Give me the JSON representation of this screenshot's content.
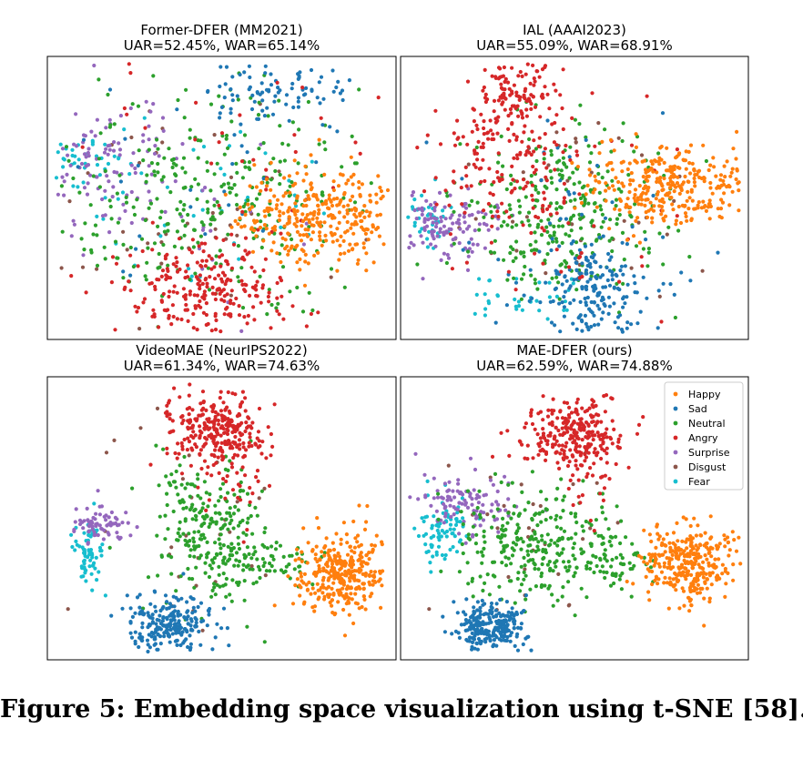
{
  "caption": "Figure 5: Embedding space visualization using t-SNE [58].",
  "colors": {
    "Happy": "#ff7f0e",
    "Sad": "#1f77b4",
    "Neutral": "#2ca02c",
    "Angry": "#d62728",
    "Surprise": "#9467bd",
    "Disgust": "#8c564b",
    "Fear": "#17becf"
  },
  "chart_data": [
    {
      "type": "scatter",
      "title": "Former-DFER (MM2021)",
      "subtitle": "UAR=52.45%, WAR=65.14%",
      "xaxis": "none",
      "yaxis": "none",
      "grid": false,
      "xlim": [
        0,
        100
      ],
      "ylim": [
        0,
        100
      ],
      "series": [
        {
          "name": "Happy",
          "clusters": [
            [
              78,
              43,
              12,
              8,
              320
            ]
          ]
        },
        {
          "name": "Sad",
          "clusters": [
            [
              66,
              88,
              12,
              5,
              90
            ],
            [
              45,
              55,
              28,
              20,
              30
            ]
          ]
        },
        {
          "name": "Neutral",
          "clusters": [
            [
              45,
              50,
              22,
              18,
              320
            ]
          ]
        },
        {
          "name": "Angry",
          "clusters": [
            [
              45,
              18,
              12,
              8,
              240
            ],
            [
              50,
              60,
              25,
              20,
              40
            ]
          ]
        },
        {
          "name": "Surprise",
          "clusters": [
            [
              18,
              62,
              10,
              9,
              90
            ],
            [
              30,
              50,
              20,
              18,
              40
            ]
          ]
        },
        {
          "name": "Disgust",
          "clusters": [
            [
              40,
              45,
              22,
              18,
              45
            ]
          ]
        },
        {
          "name": "Fear",
          "clusters": [
            [
              11,
              66,
              6,
              5,
              35
            ],
            [
              40,
              45,
              25,
              20,
              45
            ]
          ]
        }
      ]
    },
    {
      "type": "scatter",
      "title": "IAL (AAAI2023)",
      "subtitle": "UAR=55.09%, WAR=68.91%",
      "xaxis": "none",
      "yaxis": "none",
      "grid": false,
      "xlim": [
        0,
        100
      ],
      "ylim": [
        0,
        100
      ],
      "series": [
        {
          "name": "Happy",
          "clusters": [
            [
              78,
              55,
              11,
              7,
              320
            ]
          ]
        },
        {
          "name": "Sad",
          "clusters": [
            [
              56,
              15,
              8,
              10,
              200
            ],
            [
              45,
              45,
              20,
              20,
              40
            ]
          ]
        },
        {
          "name": "Neutral",
          "clusters": [
            [
              46,
              45,
              14,
              14,
              300
            ]
          ]
        },
        {
          "name": "Angry",
          "clusters": [
            [
              33,
              88,
              6,
              6,
              100
            ],
            [
              32,
              65,
              10,
              14,
              170
            ],
            [
              45,
              45,
              20,
              18,
              40
            ]
          ]
        },
        {
          "name": "Surprise",
          "clusters": [
            [
              15,
              40,
              8,
              6,
              120
            ]
          ]
        },
        {
          "name": "Disgust",
          "clusters": [
            [
              45,
              45,
              20,
              18,
              40
            ]
          ]
        },
        {
          "name": "Fear",
          "clusters": [
            [
              8,
              44,
              4,
              5,
              40
            ],
            [
              35,
              15,
              8,
              4,
              35
            ]
          ]
        }
      ]
    },
    {
      "type": "scatter",
      "title": "VideoMAE (NeurIPS2022)",
      "subtitle": "UAR=61.34%, WAR=74.63%",
      "xaxis": "none",
      "yaxis": "none",
      "grid": false,
      "xlim": [
        0,
        100
      ],
      "ylim": [
        0,
        100
      ],
      "series": [
        {
          "name": "Happy",
          "clusters": [
            [
              84,
              30,
              6,
              7,
              320
            ]
          ]
        },
        {
          "name": "Sad",
          "clusters": [
            [
              35,
              12,
              6,
              5,
              240
            ]
          ]
        },
        {
          "name": "Neutral",
          "clusters": [
            [
              47,
              45,
              8,
              13,
              260
            ],
            [
              65,
              35,
              6,
              4,
              50
            ]
          ]
        },
        {
          "name": "Angry",
          "clusters": [
            [
              48,
              82,
              7,
              6,
              250
            ],
            [
              55,
              70,
              4,
              10,
              60
            ]
          ]
        },
        {
          "name": "Surprise",
          "clusters": [
            [
              15,
              48,
              4,
              3,
              70
            ]
          ]
        },
        {
          "name": "Disgust",
          "clusters": [
            [
              40,
              50,
              15,
              20,
              30
            ]
          ]
        },
        {
          "name": "Fear",
          "clusters": [
            [
              12,
              38,
              2,
              6,
              70
            ]
          ]
        }
      ]
    },
    {
      "type": "scatter",
      "title": "MAE-DFER (ours)",
      "subtitle": "UAR=62.59%, WAR=74.88%",
      "xaxis": "none",
      "yaxis": "none",
      "grid": false,
      "xlim": [
        0,
        100
      ],
      "ylim": [
        0,
        100
      ],
      "legend": {
        "position": "top-right",
        "entries": [
          "Happy",
          "Sad",
          "Neutral",
          "Angry",
          "Surprise",
          "Disgust",
          "Fear"
        ]
      },
      "series": [
        {
          "name": "Happy",
          "clusters": [
            [
              83,
              35,
              6,
              7,
              320
            ]
          ]
        },
        {
          "name": "Sad",
          "clusters": [
            [
              26,
              12,
              5,
              4,
              250
            ]
          ]
        },
        {
          "name": "Neutral",
          "clusters": [
            [
              40,
              40,
              13,
              11,
              280
            ],
            [
              60,
              35,
              6,
              4,
              50
            ]
          ]
        },
        {
          "name": "Angry",
          "clusters": [
            [
              49,
              80,
              7,
              6,
              240
            ],
            [
              55,
              70,
              4,
              10,
              50
            ]
          ]
        },
        {
          "name": "Surprise",
          "clusters": [
            [
              18,
              55,
              7,
              5,
              110
            ]
          ]
        },
        {
          "name": "Disgust",
          "clusters": [
            [
              40,
              45,
              15,
              18,
              30
            ]
          ]
        },
        {
          "name": "Fear",
          "clusters": [
            [
              12,
              45,
              4,
              6,
              80
            ]
          ]
        }
      ]
    }
  ]
}
